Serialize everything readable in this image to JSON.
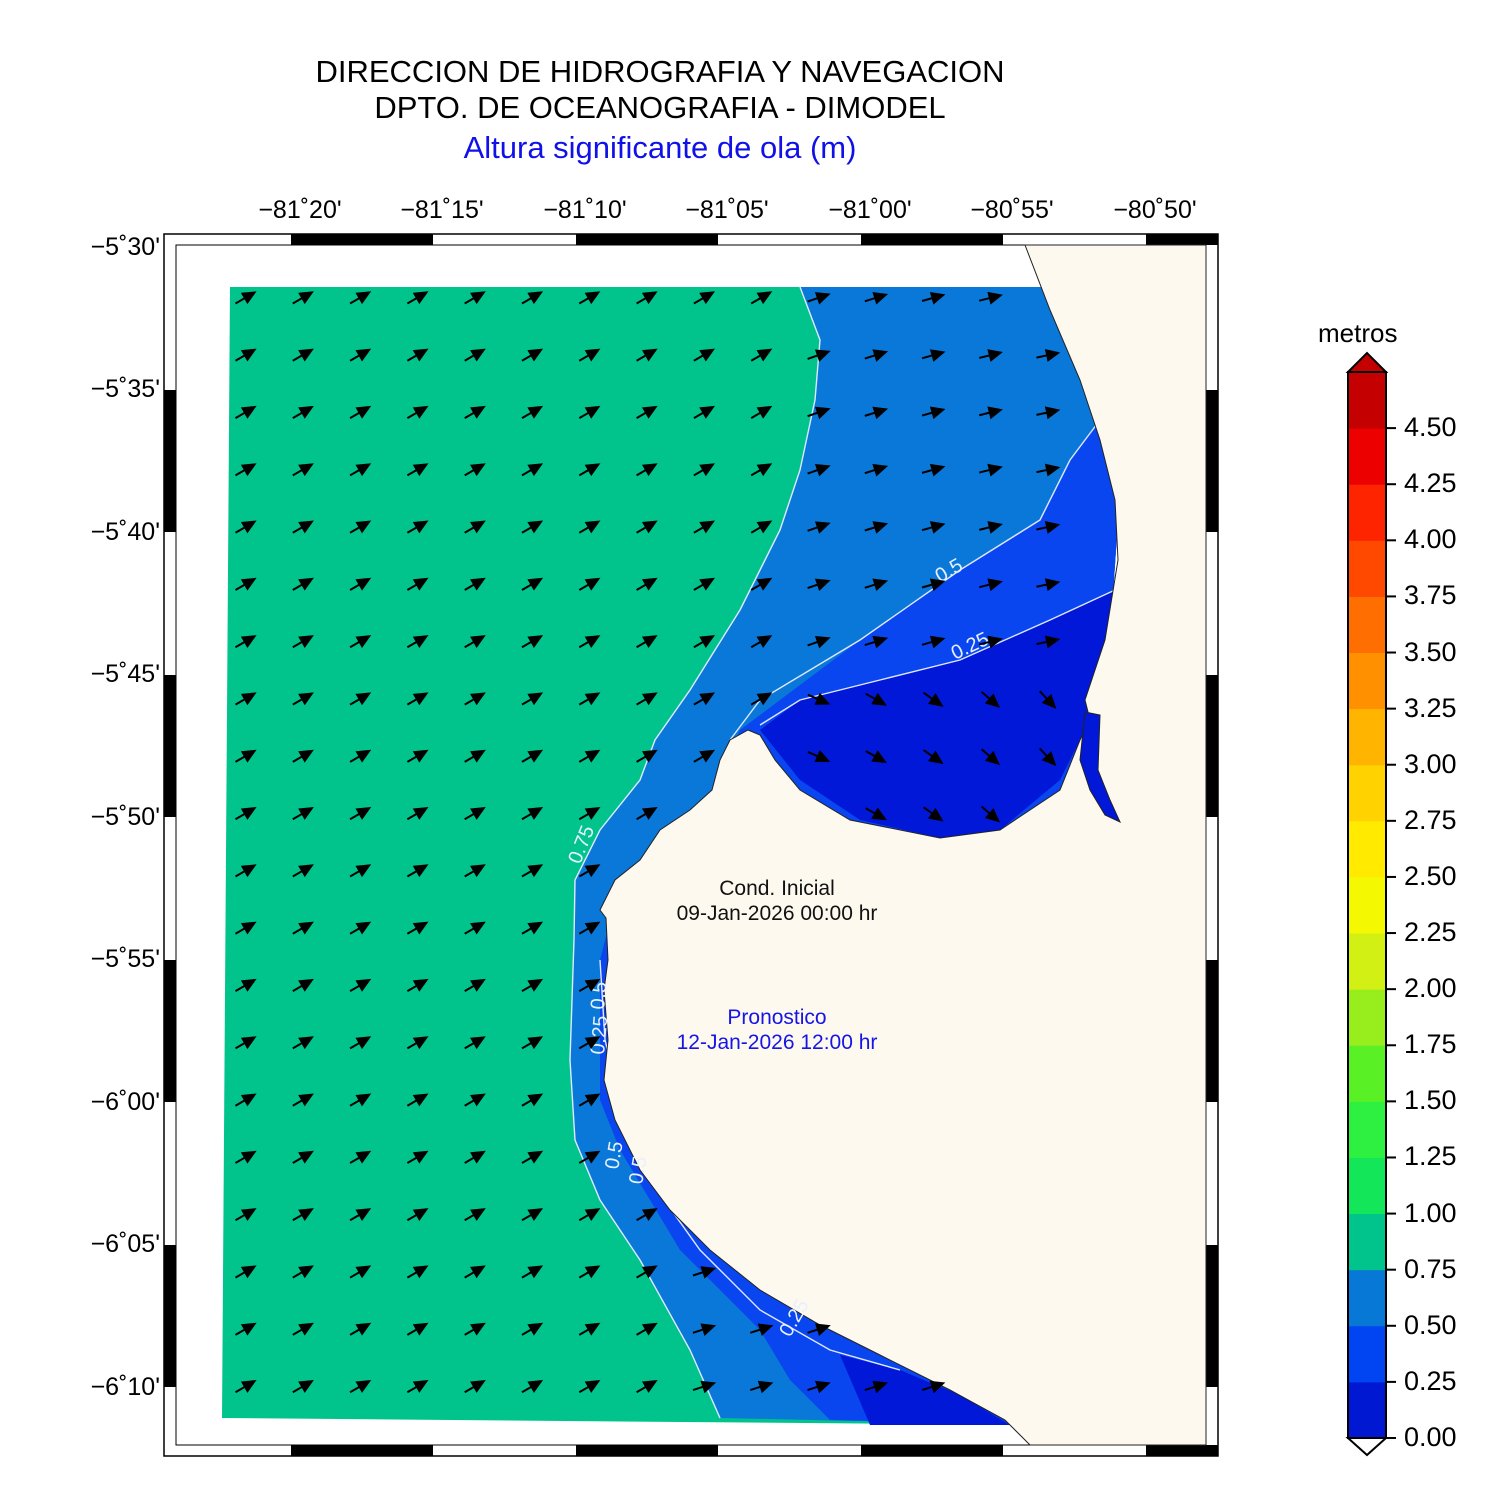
{
  "header": {
    "line1": "DIRECCION DE HIDROGRAFIA Y NAVEGACION",
    "line2": "DPTO. DE OCEANOGRAFIA - DIMODEL",
    "subtitle": "Altura significante de ola (m)",
    "subtitle_color": "#1010e8"
  },
  "map": {
    "x_ticks": [
      "−81˚20'",
      "−81˚15'",
      "−81˚10'",
      "−81˚05'",
      "−81˚00'",
      "−80˚55'",
      "−80˚50'"
    ],
    "y_ticks": [
      "−5˚30'",
      "−5˚35'",
      "−5˚40'",
      "−5˚45'",
      "−5˚50'",
      "−5˚55'",
      "−6˚00'",
      "−6˚05'",
      "−6˚10'"
    ],
    "contour_labels": [
      "0.5",
      "0.25",
      "0.75",
      "0.5",
      "0.25",
      "0.5",
      "0.5",
      "0.25"
    ],
    "annotation_initial": {
      "label": "Cond. Inicial",
      "datetime": "09-Jan-2026 00:00 hr"
    },
    "annotation_forecast": {
      "label": "Pronostico",
      "datetime": "12-Jan-2026 12:00 hr"
    },
    "land_color": "#fdf9ef",
    "arrow_color": "#000000",
    "zone_colors": {
      "0.75-1.00": "#00c48c",
      "0.50-0.75": "#0a78d8",
      "0.25-0.50": "#0a46f0",
      "0.00-0.25": "#0218d8"
    }
  },
  "colorbar": {
    "unit": "metros",
    "ticks": [
      "0.00",
      "0.25",
      "0.50",
      "0.75",
      "1.00",
      "1.25",
      "1.50",
      "1.75",
      "2.00",
      "2.25",
      "2.50",
      "2.75",
      "3.00",
      "3.25",
      "3.50",
      "3.75",
      "4.00",
      "4.25",
      "4.50"
    ],
    "colors": [
      "#0018d2",
      "#0044f2",
      "#0878d6",
      "#00c48c",
      "#14e65a",
      "#2ef040",
      "#5af026",
      "#98ee1c",
      "#d2f014",
      "#f4f800",
      "#ffea00",
      "#ffd200",
      "#ffb400",
      "#ff9000",
      "#ff6e00",
      "#ff4800",
      "#ff2400",
      "#ec0000",
      "#c40000"
    ]
  }
}
